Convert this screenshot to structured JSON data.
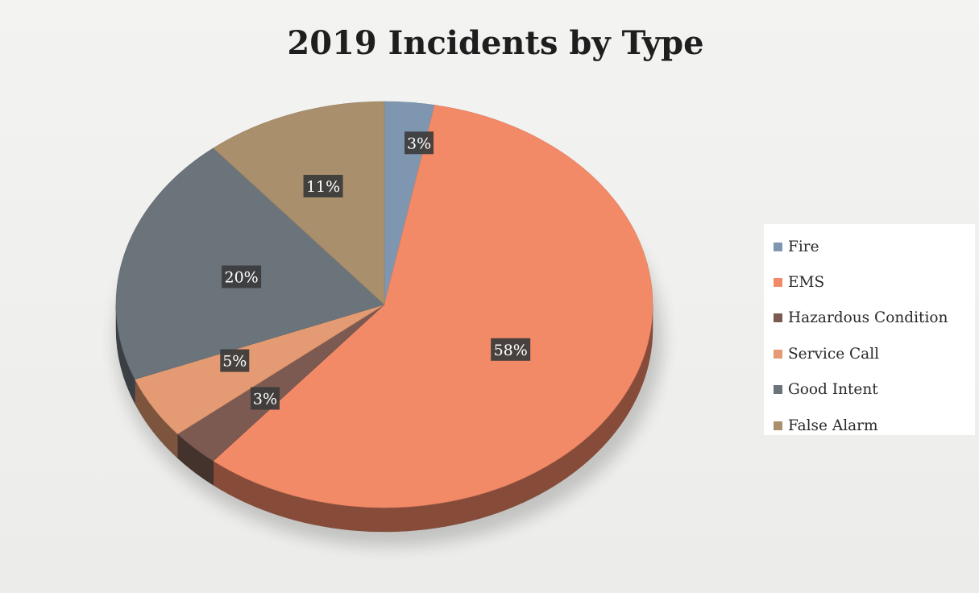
{
  "chart_data": {
    "type": "pie",
    "title": "2019 Incidents by Type",
    "legend_position": "right",
    "slices": [
      {
        "label": "Fire",
        "value": 3,
        "display": "3%",
        "color": "#7f96b0"
      },
      {
        "label": "EMS",
        "value": 58,
        "display": "58%",
        "color": "#f38a67"
      },
      {
        "label": "Hazardous Condition",
        "value": 3,
        "display": "3%",
        "color": "#7c5a52"
      },
      {
        "label": "Service Call",
        "value": 5,
        "display": "5%",
        "color": "#e49a72"
      },
      {
        "label": "Good Intent",
        "value": 20,
        "display": "20%",
        "color": "#6b737b"
      },
      {
        "label": "False Alarm",
        "value": 11,
        "display": "11%",
        "color": "#a98f6c"
      }
    ]
  }
}
